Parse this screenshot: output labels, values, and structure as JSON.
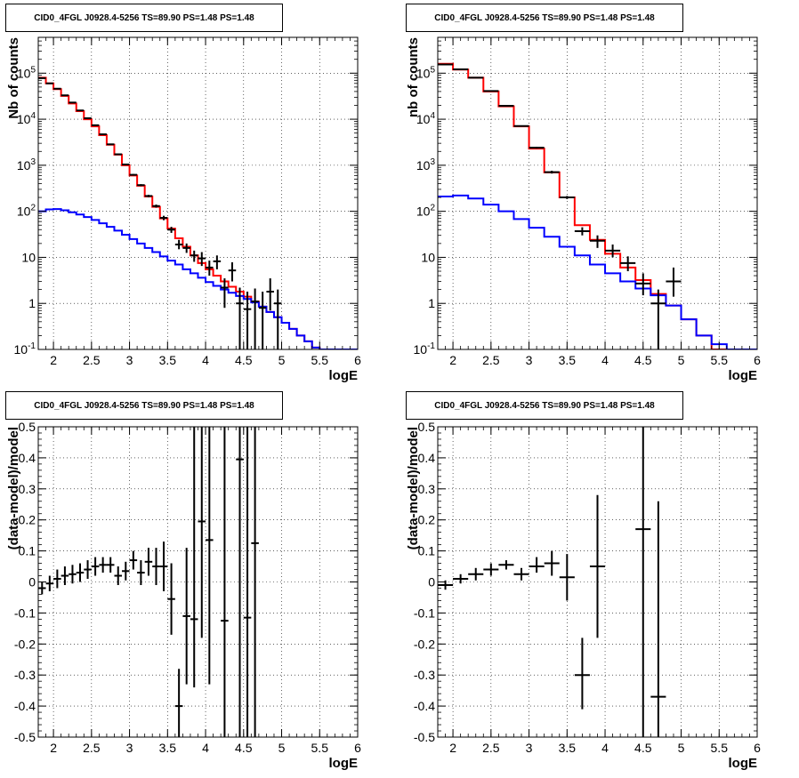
{
  "chart_data": [
    {
      "type": "histogram",
      "title": "CID0_4FGL J0928.4-5256 TS=89.90 PS=1.48 PS=1.48",
      "xlabel": "logE",
      "ylabel": "Nb of counts",
      "xlim": [
        1.8,
        6.0
      ],
      "ylim": [
        0.1,
        600000
      ],
      "ylog": true,
      "grid": true,
      "xticks": [
        "2",
        "2.5",
        "3",
        "3.5",
        "4",
        "4.5",
        "5",
        "5.5",
        "6"
      ],
      "yticks": [
        "10^-1",
        "1",
        "10",
        "10^2",
        "10^3",
        "10^4",
        "10^5"
      ],
      "series": [
        {
          "color": "#ff0000",
          "style": "step",
          "edges": [
            1.8,
            1.9,
            2.0,
            2.1,
            2.2,
            2.3,
            2.4,
            2.5,
            2.6,
            2.7,
            2.8,
            2.9,
            3.0,
            3.1,
            3.2,
            3.3,
            3.4,
            3.5,
            3.6,
            3.7,
            3.8,
            3.9,
            4.0,
            4.1,
            4.2,
            4.3,
            4.4,
            4.5,
            4.6,
            4.7,
            4.8,
            4.9,
            5.0,
            5.1,
            5.2,
            5.3,
            5.4,
            5.5,
            5.6,
            5.7,
            5.8,
            5.9,
            6.0
          ],
          "values": [
            80000,
            60000,
            45000,
            32000,
            22000,
            15000,
            10000,
            7000,
            4500,
            2800,
            1700,
            1000,
            600,
            360,
            210,
            125,
            70,
            42,
            26,
            17,
            11,
            7.5,
            5.5,
            4,
            3,
            2.3,
            1.8,
            1.4,
            1.1,
            0.85,
            0.65,
            0.5,
            0.38,
            0.28,
            0.2,
            0.15,
            0.11,
            0.1,
            0.1,
            0.1,
            0.1,
            0.1
          ]
        },
        {
          "color": "#0000ff",
          "style": "step",
          "edges": [
            1.8,
            1.9,
            2.0,
            2.1,
            2.2,
            2.3,
            2.4,
            2.5,
            2.6,
            2.7,
            2.8,
            2.9,
            3.0,
            3.1,
            3.2,
            3.3,
            3.4,
            3.5,
            3.6,
            3.7,
            3.8,
            3.9,
            4.0,
            4.1,
            4.2,
            4.3,
            4.4,
            4.5,
            4.6,
            4.7,
            4.8,
            4.9,
            5.0,
            5.1,
            5.2,
            5.3,
            5.4,
            5.5,
            5.6,
            5.7,
            5.8,
            5.9,
            6.0
          ],
          "values": [
            100,
            110,
            112,
            105,
            95,
            85,
            75,
            65,
            55,
            46,
            38,
            31,
            25,
            20,
            16,
            13,
            10.5,
            8.5,
            7,
            5.5,
            4.5,
            3.6,
            2.9,
            2.4,
            2,
            1.7,
            1.45,
            1.25,
            1.05,
            0.85,
            0.65,
            0.5,
            0.38,
            0.28,
            0.2,
            0.15,
            0.11,
            0.1,
            0.1,
            0.1,
            0.1,
            0.1
          ]
        },
        {
          "color": "#000000",
          "style": "errorbars",
          "x": [
            1.85,
            1.95,
            2.05,
            2.15,
            2.25,
            2.35,
            2.45,
            2.55,
            2.65,
            2.75,
            2.85,
            2.95,
            3.05,
            3.15,
            3.25,
            3.35,
            3.45,
            3.55,
            3.65,
            3.75,
            3.85,
            3.95,
            4.05,
            4.15,
            4.25,
            4.35,
            4.45,
            4.55,
            4.65,
            4.75,
            4.85,
            4.95
          ],
          "xerr": 0.05,
          "y": [
            78000,
            60000,
            46000,
            33000,
            23000,
            15500,
            10500,
            7400,
            4700,
            2850,
            1730,
            1040,
            620,
            370,
            215,
            130,
            72,
            40,
            19,
            16,
            11,
            9.5,
            6,
            8.2,
            2.2,
            5.2,
            1,
            0.75,
            1.1,
            0.8,
            1.8,
            1
          ],
          "ylow": [
            76500,
            59000,
            45300,
            32500,
            22600,
            15200,
            10300,
            7200,
            4600,
            2780,
            1680,
            1000,
            595,
            352,
            202,
            120,
            64,
            34,
            15,
            12.5,
            8,
            6.5,
            4,
            5.5,
            0.8,
            3,
            0.1,
            0.1,
            0.1,
            0.1,
            0.7,
            0.1
          ],
          "yhigh": [
            79500,
            61000,
            46700,
            33500,
            23400,
            15800,
            10700,
            7600,
            4800,
            2920,
            1780,
            1080,
            645,
            388,
            228,
            140,
            80,
            46,
            24,
            20,
            14,
            13,
            8.5,
            11,
            3.5,
            7.8,
            2.2,
            1.8,
            2.1,
            1.8,
            3.5,
            2
          ]
        }
      ]
    },
    {
      "type": "histogram",
      "title": "CID0_4FGL J0928.4-5256 TS=89.90 PS=1.48 PS=1.48",
      "xlabel": "logE",
      "ylabel": "nb of counts",
      "xlim": [
        1.8,
        6.0
      ],
      "ylim": [
        0.1,
        600000
      ],
      "ylog": true,
      "grid": true,
      "xticks": [
        "2",
        "2.5",
        "3",
        "3.5",
        "4",
        "4.5",
        "5",
        "5.5",
        "6"
      ],
      "yticks": [
        "10^-1",
        "1",
        "10",
        "10^2",
        "10^3",
        "10^4",
        "10^5"
      ],
      "series": [
        {
          "color": "#ff0000",
          "style": "step",
          "edges": [
            1.8,
            2.0,
            2.2,
            2.4,
            2.6,
            2.8,
            3.0,
            3.2,
            3.4,
            3.6,
            3.8,
            4.0,
            4.2,
            4.4,
            4.6,
            4.8,
            5.0,
            5.2,
            5.4,
            5.6,
            5.8,
            6.0
          ],
          "values": [
            160000,
            120000,
            80000,
            40000,
            19000,
            7000,
            2300,
            700,
            200,
            50,
            24,
            12,
            6,
            3.2,
            1.6,
            0.9,
            0.45,
            0.2,
            0.1,
            0.1,
            0.1
          ]
        },
        {
          "color": "#0000ff",
          "style": "step",
          "edges": [
            1.8,
            2.0,
            2.2,
            2.4,
            2.6,
            2.8,
            3.0,
            3.2,
            3.4,
            3.6,
            3.8,
            4.0,
            4.2,
            4.4,
            4.6,
            4.8,
            5.0,
            5.2,
            5.4,
            5.6,
            5.8,
            6.0
          ],
          "values": [
            210,
            220,
            190,
            140,
            100,
            68,
            44,
            28,
            17,
            11,
            7,
            4.5,
            3,
            2.1,
            1.5,
            0.9,
            0.45,
            0.2,
            0.13,
            0.1,
            0.1
          ]
        },
        {
          "color": "#000000",
          "style": "errorbars",
          "x": [
            1.9,
            2.1,
            2.3,
            2.5,
            2.7,
            2.9,
            3.1,
            3.3,
            3.5,
            3.7,
            3.9,
            4.1,
            4.3,
            4.5,
            4.7,
            4.9
          ],
          "xerr": 0.1,
          "y": [
            155000,
            121000,
            80000,
            41000,
            19600,
            7100,
            2400,
            710,
            200,
            37,
            23,
            14,
            7.5,
            2.7,
            1,
            3
          ],
          "ylow": [
            153000,
            120000,
            79000,
            40300,
            19200,
            6950,
            2300,
            660,
            185,
            30,
            16,
            10,
            5,
            1.5,
            0.1,
            1.4
          ],
          "yhigh": [
            157000,
            122000,
            81000,
            41700,
            20000,
            7250,
            2500,
            760,
            215,
            45,
            30,
            19,
            10.5,
            4.5,
            2,
            6
          ]
        }
      ]
    },
    {
      "type": "scatter",
      "title": "CID0_4FGL J0928.4-5256 TS=89.90 PS=1.48 PS=1.48",
      "xlabel": "logE",
      "ylabel": "(data-model)/model",
      "xlim": [
        1.8,
        6.0
      ],
      "ylim": [
        -0.5,
        0.5
      ],
      "grid": true,
      "xticks": [
        "2",
        "2.5",
        "3",
        "3.5",
        "4",
        "4.5",
        "5",
        "5.5",
        "6"
      ],
      "yticks": [
        "-0.5",
        "-0.4",
        "-0.3",
        "-0.2",
        "-0.1",
        "0",
        "0.1",
        "0.2",
        "0.3",
        "0.4",
        "0.5"
      ],
      "series": [
        {
          "color": "#000000",
          "style": "errorbars",
          "x": [
            1.85,
            1.95,
            2.05,
            2.15,
            2.25,
            2.35,
            2.45,
            2.55,
            2.65,
            2.75,
            2.85,
            2.95,
            3.05,
            3.15,
            3.25,
            3.35,
            3.45,
            3.55,
            3.65,
            3.75,
            3.85,
            3.95,
            4.05,
            4.25,
            4.45,
            4.55,
            4.65
          ],
          "xerr": 0.05,
          "y": [
            -0.02,
            -0.005,
            0.01,
            0.02,
            0.025,
            0.03,
            0.04,
            0.05,
            0.055,
            0.055,
            0.02,
            0.035,
            0.07,
            0.03,
            0.065,
            0.05,
            0.05,
            -0.055,
            -0.4,
            -0.11,
            -0.12,
            0.195,
            0.135,
            -0.125,
            0.395,
            -0.115,
            0.125
          ],
          "ylow": [
            -0.04,
            -0.03,
            -0.02,
            -0.01,
            -0.005,
            0.0,
            0.01,
            0.02,
            0.03,
            0.03,
            -0.01,
            0.005,
            0.04,
            -0.01,
            0.02,
            -0.01,
            -0.03,
            -0.17,
            -0.5,
            -0.33,
            -0.34,
            -0.18,
            -0.33,
            -0.5,
            -0.5,
            -0.5,
            -0.5
          ],
          "yhigh": [
            0.0,
            0.02,
            0.04,
            0.05,
            0.055,
            0.06,
            0.07,
            0.08,
            0.08,
            0.08,
            0.05,
            0.065,
            0.1,
            0.07,
            0.11,
            0.11,
            0.13,
            0.06,
            -0.28,
            0.11,
            0.5,
            0.5,
            0.6,
            0.5,
            0.5,
            0.5,
            0.5
          ]
        }
      ]
    },
    {
      "type": "scatter",
      "title": "CID0_4FGL J0928.4-5256 TS=89.90 PS=1.48 PS=1.48",
      "xlabel": "logE",
      "ylabel": "(data-model)/model",
      "xlim": [
        1.8,
        6.0
      ],
      "ylim": [
        -0.5,
        0.5
      ],
      "grid": true,
      "xticks": [
        "2",
        "2.5",
        "3",
        "3.5",
        "4",
        "4.5",
        "5",
        "5.5",
        "6"
      ],
      "yticks": [
        "-0.5",
        "-0.4",
        "-0.3",
        "-0.2",
        "-0.1",
        "0",
        "0.1",
        "0.2",
        "0.3",
        "0.4",
        "0.5"
      ],
      "series": [
        {
          "color": "#000000",
          "style": "errorbars",
          "x": [
            1.9,
            2.1,
            2.3,
            2.5,
            2.7,
            2.9,
            3.1,
            3.3,
            3.5,
            3.7,
            3.9,
            4.5,
            4.7
          ],
          "xerr": 0.1,
          "y": [
            -0.01,
            0.01,
            0.025,
            0.04,
            0.055,
            0.025,
            0.05,
            0.06,
            0.015,
            -0.3,
            0.05,
            0.17,
            -0.37
          ],
          "ylow": [
            -0.025,
            -0.005,
            0.005,
            0.02,
            0.04,
            0.005,
            0.03,
            0.02,
            -0.06,
            -0.41,
            -0.18,
            -0.5,
            -0.5
          ],
          "yhigh": [
            0.005,
            0.025,
            0.045,
            0.06,
            0.07,
            0.045,
            0.08,
            0.1,
            0.09,
            -0.18,
            0.28,
            0.5,
            0.26
          ]
        }
      ]
    }
  ]
}
